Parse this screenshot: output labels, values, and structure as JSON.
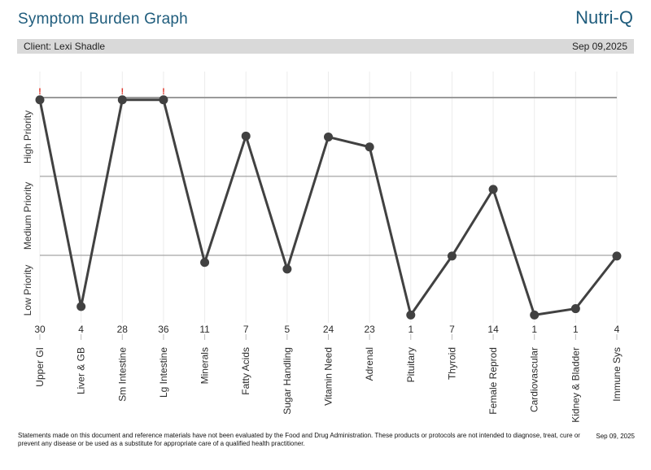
{
  "header": {
    "title": "Symptom Burden Graph",
    "brand": "Nutri-Q"
  },
  "client_bar": {
    "client_label": "Client: Lexi Shadle",
    "date": "Sep 09,2025"
  },
  "chart_data": {
    "type": "line",
    "title": "Symptom Burden Graph",
    "xlabel": "",
    "ylabel": "",
    "grid": true,
    "zone_labels": [
      "High Priority",
      "Medium Priority",
      "Low Priority"
    ],
    "zone_boundaries_frac": [
      0.346,
      0.693
    ],
    "frac_scale_note": "frac: 0 = top reference line, 1 = x-axis baseline",
    "points": [
      {
        "category": "Upper GI",
        "value": 30,
        "frac": 0.01,
        "alert": true
      },
      {
        "category": "Liver & GB",
        "value": 4,
        "frac": 0.918,
        "alert": false
      },
      {
        "category": "Sm Intestine",
        "value": 28,
        "frac": 0.01,
        "alert": true
      },
      {
        "category": "Lg Intestine",
        "value": 36,
        "frac": 0.01,
        "alert": true
      },
      {
        "category": "Minerals",
        "value": 11,
        "frac": 0.724,
        "alert": false
      },
      {
        "category": "Fatty Acids",
        "value": 7,
        "frac": 0.169,
        "alert": false
      },
      {
        "category": "Sugar Handling",
        "value": 5,
        "frac": 0.753,
        "alert": false
      },
      {
        "category": "Vitamin Need",
        "value": 24,
        "frac": 0.173,
        "alert": false
      },
      {
        "category": "Adrenal",
        "value": 23,
        "frac": 0.217,
        "alert": false
      },
      {
        "category": "Pituitary",
        "value": 1,
        "frac": 0.955,
        "alert": false
      },
      {
        "category": "Thyroid",
        "value": 7,
        "frac": 0.696,
        "alert": false
      },
      {
        "category": "Female Reprod",
        "value": 14,
        "frac": 0.403,
        "alert": false
      },
      {
        "category": "Cardiovascular",
        "value": 1,
        "frac": 0.955,
        "alert": false
      },
      {
        "category": "Kidney & Bladder",
        "value": 1,
        "frac": 0.927,
        "alert": false
      },
      {
        "category": "Immune Sys",
        "value": 4,
        "frac": 0.696,
        "alert": false
      }
    ],
    "colors": {
      "accent": "#205d7d",
      "line": "#414141",
      "point": "#414141",
      "top_line": "#9a9a9a",
      "zone_line": "#8f8f8f",
      "gridline": "#ececec",
      "tick": "#bdbdbd",
      "alert": "#e0392e",
      "label": "#2b2b2b"
    }
  },
  "footer": {
    "disclaimer": "Statements made on this document and reference materials have not been evaluated by the Food and Drug Administration. These products or protocols are not intended to diagnose, treat, cure or prevent any disease or be used as a substitute for appropriate care of a qualified health practitioner.",
    "date": "Sep 09, 2025"
  }
}
